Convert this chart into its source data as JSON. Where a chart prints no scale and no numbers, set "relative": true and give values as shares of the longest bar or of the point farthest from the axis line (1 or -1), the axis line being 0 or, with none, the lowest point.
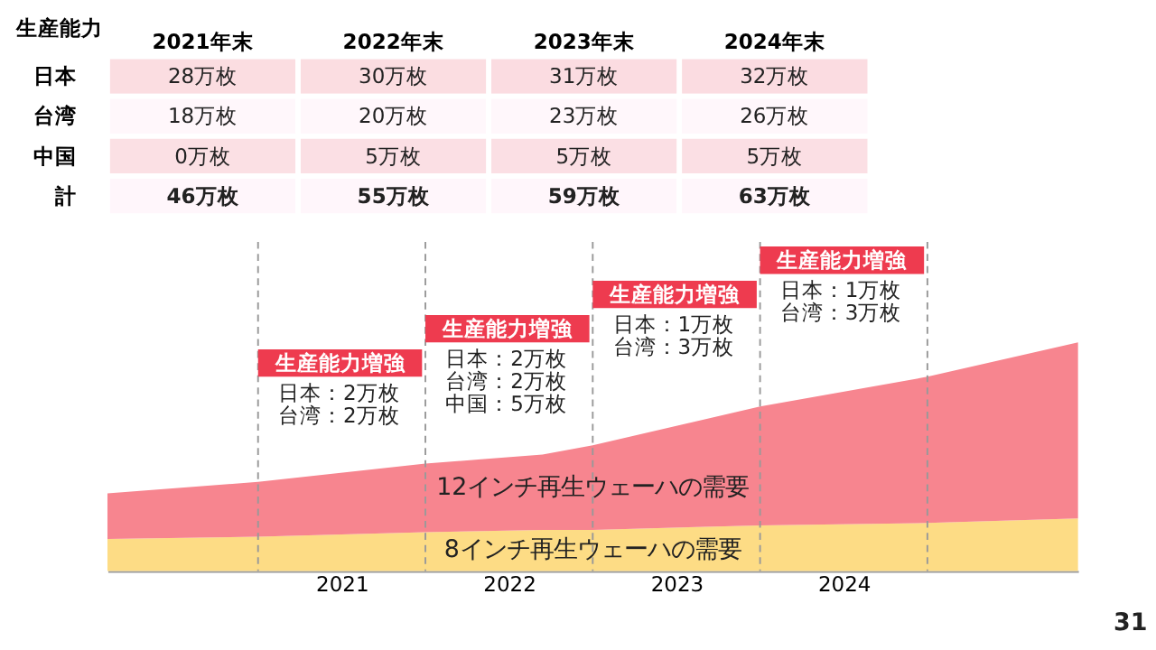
{
  "chart_data": [
    {
      "type": "heatmap",
      "ylabel": "生産能力",
      "categories": [
        "2021年末",
        "2022年末",
        "2023年末",
        "2024年末"
      ],
      "y_categories": [
        "日本",
        "台湾",
        "中国",
        "計"
      ],
      "cells": [
        [
          28,
          30,
          31,
          32
        ],
        [
          18,
          20,
          23,
          26
        ],
        [
          0,
          5,
          5,
          5
        ],
        [
          46,
          55,
          59,
          63
        ]
      ],
      "cell_labels": [
        [
          "28万枚",
          "30万枚",
          "31万枚",
          "32万枚"
        ],
        [
          "18万枚",
          "20万枚",
          "23万枚",
          "26万枚"
        ],
        [
          "0万枚",
          "5万枚",
          "5万枚",
          "5万枚"
        ],
        [
          "46万枚",
          "55万枚",
          "59万枚",
          "63万枚"
        ]
      ]
    },
    {
      "type": "area",
      "relative": true,
      "stacked": true,
      "x": [
        2019.6,
        2020.5,
        2021.5,
        2022.2,
        2022.5,
        2023.5,
        2024.5,
        2025.4
      ],
      "xlim": [
        2019.6,
        2025.4
      ],
      "xticks": [
        2021,
        2022,
        2023,
        2024
      ],
      "series": [
        {
          "name": "8インチ再生ウェーハの需要",
          "color": "#fddc85",
          "values": [
            0.14,
            0.15,
            0.17,
            0.18,
            0.18,
            0.2,
            0.21,
            0.23
          ]
        },
        {
          "name": "12インチ再生ウェーハの需要",
          "color": "#f7858f",
          "values": [
            0.2,
            0.24,
            0.3,
            0.33,
            0.37,
            0.52,
            0.64,
            0.77
          ]
        }
      ],
      "ref_lines": [
        {
          "axis": "x",
          "value": 2020.5,
          "color": "#999999",
          "line_style": "dashed"
        },
        {
          "axis": "x",
          "value": 2021.5,
          "color": "#999999",
          "line_style": "dashed"
        },
        {
          "axis": "x",
          "value": 2022.5,
          "color": "#999999",
          "line_style": "dashed"
        },
        {
          "axis": "x",
          "value": 2023.5,
          "color": "#999999",
          "line_style": "dashed"
        },
        {
          "axis": "x",
          "value": 2024.5,
          "color": "#999999",
          "line_style": "dashed"
        }
      ],
      "annotations": [
        "生産能力増強",
        "日本：2万枚",
        "台湾：2万枚",
        "生産能力増強",
        "日本：2万枚",
        "台湾：2万枚",
        "中国：5万枚",
        "生産能力増強",
        "日本：1万枚",
        "台湾：3万枚",
        "生産能力増強",
        "日本：1万枚",
        "台湾：3万枚",
        "31"
      ]
    }
  ]
}
